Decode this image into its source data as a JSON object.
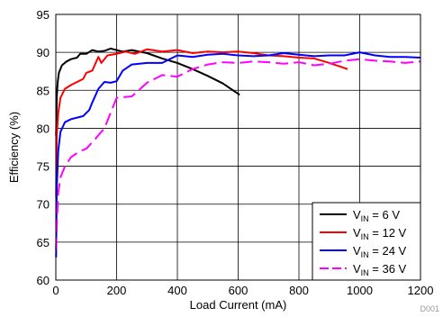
{
  "chart_data": {
    "type": "line",
    "title": "",
    "xlabel": "Load Current (mA)",
    "ylabel": "Efficiency (%)",
    "xlim": [
      0,
      1200
    ],
    "ylim": [
      60,
      95
    ],
    "xticks": [
      0,
      200,
      400,
      600,
      800,
      1000,
      1200
    ],
    "yticks": [
      60,
      65,
      70,
      75,
      80,
      85,
      90,
      95
    ],
    "grid": true,
    "legend_position": "bottom-right",
    "series": [
      {
        "name": "6 V",
        "label_main": "V",
        "label_sub": "IN",
        "label_rest": " = 6 V",
        "color": "#000000",
        "dash": "",
        "points": [
          [
            1,
            79
          ],
          [
            3,
            84
          ],
          [
            6,
            86
          ],
          [
            10,
            87.3
          ],
          [
            20,
            88.3
          ],
          [
            35,
            88.8
          ],
          [
            50,
            89.1
          ],
          [
            70,
            89.3
          ],
          [
            80,
            89.8
          ],
          [
            100,
            89.8
          ],
          [
            120,
            90.3
          ],
          [
            140,
            90.1
          ],
          [
            160,
            90.2
          ],
          [
            180,
            90.5
          ],
          [
            200,
            90.3
          ],
          [
            220,
            90.1
          ],
          [
            250,
            90.3
          ],
          [
            300,
            89.9
          ],
          [
            350,
            89.2
          ],
          [
            400,
            88.6
          ],
          [
            450,
            87.8
          ],
          [
            500,
            86.9
          ],
          [
            550,
            85.9
          ],
          [
            605,
            84.4
          ]
        ]
      },
      {
        "name": "12 V",
        "label_main": "V",
        "label_sub": "IN",
        "label_rest": " = 12 V",
        "color": "#ff0000",
        "dash": "",
        "points": [
          [
            1,
            71
          ],
          [
            3,
            79
          ],
          [
            8,
            82
          ],
          [
            15,
            84
          ],
          [
            30,
            85.2
          ],
          [
            50,
            85.7
          ],
          [
            70,
            86.1
          ],
          [
            90,
            86.5
          ],
          [
            100,
            87.3
          ],
          [
            120,
            87.6
          ],
          [
            140,
            89.4
          ],
          [
            150,
            88.6
          ],
          [
            170,
            89.6
          ],
          [
            200,
            89.8
          ],
          [
            230,
            90.1
          ],
          [
            260,
            89.8
          ],
          [
            300,
            90.4
          ],
          [
            350,
            90.1
          ],
          [
            400,
            90.3
          ],
          [
            450,
            89.9
          ],
          [
            500,
            90.1
          ],
          [
            550,
            90
          ],
          [
            600,
            90.1
          ],
          [
            650,
            89.9
          ],
          [
            700,
            89.6
          ],
          [
            750,
            89.5
          ],
          [
            800,
            89.3
          ],
          [
            850,
            89.2
          ],
          [
            900,
            88.6
          ],
          [
            960,
            87.8
          ]
        ]
      },
      {
        "name": "24 V",
        "label_main": "V",
        "label_sub": "IN",
        "label_rest": " = 24 V",
        "color": "#0000ff",
        "dash": "",
        "points": [
          [
            1,
            63
          ],
          [
            3,
            72
          ],
          [
            8,
            77
          ],
          [
            15,
            79.5
          ],
          [
            30,
            80.8
          ],
          [
            50,
            81.2
          ],
          [
            70,
            81.4
          ],
          [
            90,
            81.6
          ],
          [
            110,
            82.4
          ],
          [
            120,
            83.4
          ],
          [
            140,
            85.2
          ],
          [
            160,
            86.1
          ],
          [
            180,
            86
          ],
          [
            200,
            86.2
          ],
          [
            220,
            87.6
          ],
          [
            250,
            88.4
          ],
          [
            300,
            88.6
          ],
          [
            350,
            88.6
          ],
          [
            400,
            89.6
          ],
          [
            450,
            89.4
          ],
          [
            500,
            89.7
          ],
          [
            550,
            89.8
          ],
          [
            600,
            89.6
          ],
          [
            650,
            89.5
          ],
          [
            700,
            89.6
          ],
          [
            750,
            89.9
          ],
          [
            800,
            89.7
          ],
          [
            850,
            89.5
          ],
          [
            900,
            89.6
          ],
          [
            950,
            89.6
          ],
          [
            1000,
            90
          ],
          [
            1050,
            89.6
          ],
          [
            1100,
            89.4
          ],
          [
            1150,
            89.4
          ],
          [
            1200,
            89.3
          ]
        ]
      },
      {
        "name": "36 V",
        "label_main": "V",
        "label_sub": "IN",
        "label_rest": " = 36 V",
        "color": "#ff00ff",
        "dash": "14,6",
        "points": [
          [
            1,
            64
          ],
          [
            3,
            67
          ],
          [
            8,
            71.5
          ],
          [
            15,
            73.5
          ],
          [
            30,
            75
          ],
          [
            50,
            76.2
          ],
          [
            80,
            77
          ],
          [
            100,
            77.3
          ],
          [
            130,
            78.6
          ],
          [
            160,
            80
          ],
          [
            200,
            84
          ],
          [
            250,
            84.2
          ],
          [
            300,
            86
          ],
          [
            350,
            87
          ],
          [
            400,
            86.8
          ],
          [
            450,
            87.8
          ],
          [
            500,
            88.4
          ],
          [
            550,
            88.7
          ],
          [
            600,
            88.6
          ],
          [
            650,
            88.8
          ],
          [
            700,
            88.7
          ],
          [
            750,
            88.5
          ],
          [
            800,
            88.7
          ],
          [
            850,
            88.3
          ],
          [
            900,
            88.5
          ],
          [
            950,
            88.9
          ],
          [
            1000,
            89.1
          ],
          [
            1050,
            88.9
          ],
          [
            1100,
            88.8
          ],
          [
            1150,
            88.6
          ],
          [
            1200,
            88.8
          ]
        ]
      }
    ]
  },
  "watermark": "D001"
}
